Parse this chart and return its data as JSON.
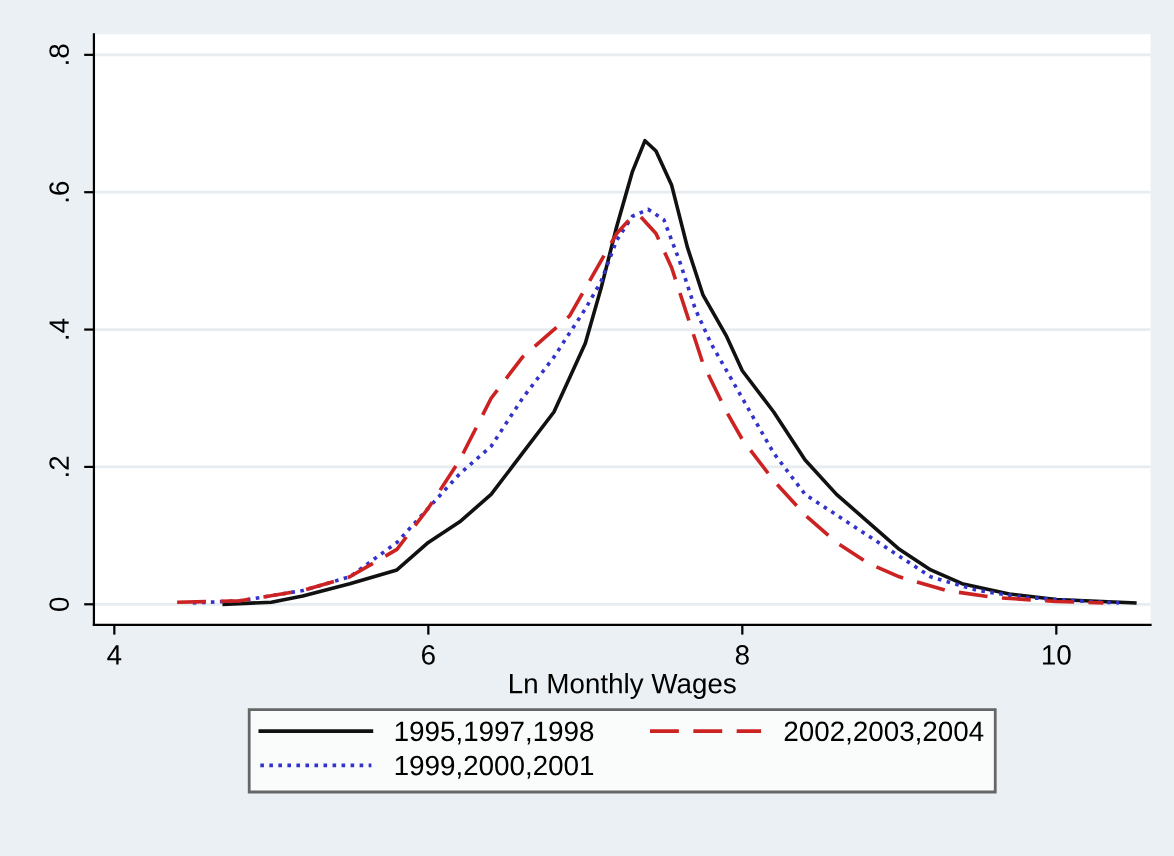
{
  "chart_data": {
    "type": "line",
    "xlabel": "Ln Monthly Wages",
    "xlim": [
      3.87,
      10.6
    ],
    "xticks": [
      4,
      6,
      8,
      10
    ],
    "ylim": [
      -0.03,
      0.83
    ],
    "yticks": [
      0,
      {
        "value": 0.2,
        "label": ".2"
      },
      {
        "value": 0.4,
        "label": ".4"
      },
      {
        "value": 0.6,
        "label": ".6"
      },
      {
        "value": 0.8,
        "label": ".8"
      }
    ],
    "grid": "y",
    "legend": "bottom",
    "marker": "none",
    "series": [
      {
        "name": "1995,1997,1998",
        "color": "#111111",
        "line_style": "solid",
        "x": [
          4.7,
          5.0,
          5.2,
          5.5,
          5.8,
          6.0,
          6.2,
          6.4,
          6.6,
          6.8,
          6.9,
          7.0,
          7.1,
          7.2,
          7.3,
          7.38,
          7.45,
          7.55,
          7.65,
          7.75,
          7.9,
          8.0,
          8.2,
          8.4,
          8.6,
          8.8,
          9.0,
          9.2,
          9.4,
          9.7,
          10.0,
          10.5
        ],
        "values": [
          0,
          0.003,
          0.012,
          0.03,
          0.05,
          0.09,
          0.12,
          0.16,
          0.22,
          0.28,
          0.33,
          0.38,
          0.46,
          0.55,
          0.63,
          0.675,
          0.66,
          0.61,
          0.52,
          0.45,
          0.39,
          0.34,
          0.28,
          0.21,
          0.16,
          0.12,
          0.08,
          0.05,
          0.03,
          0.015,
          0.007,
          0.002
        ]
      },
      {
        "name": "1999,2000,2001",
        "color": "#3333cc",
        "line_style": "dotted",
        "x": [
          4.5,
          4.8,
          5.2,
          5.5,
          5.8,
          6.0,
          6.2,
          6.4,
          6.6,
          6.8,
          7.0,
          7.1,
          7.2,
          7.3,
          7.4,
          7.5,
          7.6,
          7.7,
          7.8,
          8.0,
          8.2,
          8.4,
          8.6,
          8.8,
          9.0,
          9.2,
          9.5,
          9.8,
          10.2,
          10.4
        ],
        "values": [
          0.002,
          0.005,
          0.02,
          0.04,
          0.09,
          0.14,
          0.19,
          0.23,
          0.3,
          0.36,
          0.43,
          0.47,
          0.53,
          0.565,
          0.575,
          0.56,
          0.5,
          0.43,
          0.38,
          0.3,
          0.22,
          0.16,
          0.13,
          0.1,
          0.07,
          0.04,
          0.02,
          0.01,
          0.004,
          0.002
        ]
      },
      {
        "name": "2002,2003,2004",
        "color": "#cc2222",
        "line_style": "dashed",
        "x": [
          4.4,
          4.8,
          5.2,
          5.5,
          5.8,
          6.0,
          6.2,
          6.4,
          6.6,
          6.8,
          6.9,
          7.0,
          7.1,
          7.2,
          7.3,
          7.35,
          7.45,
          7.55,
          7.65,
          7.75,
          7.9,
          8.0,
          8.2,
          8.4,
          8.6,
          8.8,
          9.0,
          9.3,
          9.6,
          10.0,
          10.3
        ],
        "values": [
          0.003,
          0.005,
          0.02,
          0.04,
          0.08,
          0.14,
          0.21,
          0.3,
          0.36,
          0.4,
          0.42,
          0.46,
          0.5,
          0.54,
          0.565,
          0.565,
          0.54,
          0.49,
          0.42,
          0.35,
          0.28,
          0.24,
          0.18,
          0.13,
          0.09,
          0.06,
          0.04,
          0.02,
          0.01,
          0.004,
          0.002
        ]
      }
    ]
  }
}
